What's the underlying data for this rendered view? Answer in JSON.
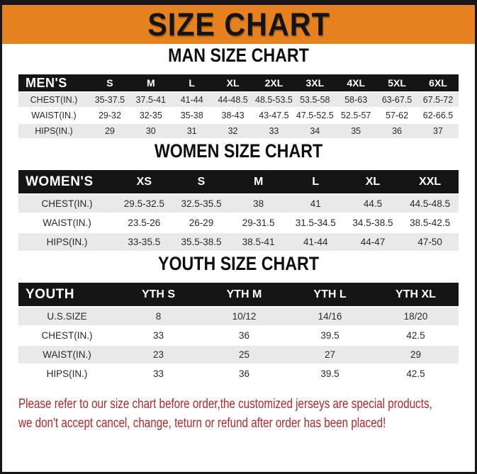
{
  "colors": {
    "banner_bg": "#e5811e",
    "table_header_bg": "#151515",
    "row_stripe": "#e9e9e9",
    "footer_text": "#b5282a"
  },
  "banner": {
    "title": "SIZE CHART"
  },
  "sections": [
    {
      "heading": "MAN SIZE CHART",
      "table": {
        "header": [
          "MEN'S",
          "S",
          "M",
          "L",
          "XL",
          "2XL",
          "3XL",
          "4XL",
          "5XL",
          "6XL"
        ],
        "rows": [
          [
            "CHEST(IN.)",
            "35-37.5",
            "37.5-41",
            "41-44",
            "44-48.5",
            "48.5-53.5",
            "53.5-58",
            "58-63",
            "63-67.5",
            "67.5-72"
          ],
          [
            "WAIST(IN.)",
            "29-32",
            "32-35",
            "35-38",
            "38-43",
            "43-47.5",
            "47.5-52.5",
            "52.5-57",
            "57-62",
            "62-66.5"
          ],
          [
            "HIPS(IN.)",
            "29",
            "30",
            "31",
            "32",
            "33",
            "34",
            "35",
            "36",
            "37"
          ]
        ]
      }
    },
    {
      "heading": "WOMEN SIZE CHART",
      "table": {
        "header": [
          "WOMEN'S",
          "XS",
          "S",
          "M",
          "L",
          "XL",
          "XXL"
        ],
        "rows": [
          [
            "CHEST(IN.)",
            "29.5-32.5",
            "32.5-35.5",
            "38",
            "41",
            "44.5",
            "44.5-48.5"
          ],
          [
            "WAIST(IN.)",
            "23.5-26",
            "26-29",
            "29-31.5",
            "31.5-34.5",
            "34.5-38.5",
            "38.5-42.5"
          ],
          [
            "HIPS(IN.)",
            "33-35.5",
            "35.5-38.5",
            "38.5-41",
            "41-44",
            "44-47",
            "47-50"
          ]
        ]
      }
    },
    {
      "heading": "YOUTH SIZE CHART",
      "table": {
        "header": [
          "YOUTH",
          "YTH S",
          "YTH M",
          "YTH L",
          "YTH XL"
        ],
        "rows": [
          [
            "U.S.SIZE",
            "8",
            "10/12",
            "14/16",
            "18/20"
          ],
          [
            "CHEST(IN.)",
            "33",
            "36",
            "39.5",
            "42.5"
          ],
          [
            "WAIST(IN.)",
            "23",
            "25",
            "27",
            "29"
          ],
          [
            "HIPS(IN.)",
            "33",
            "36",
            "39.5",
            "42.5"
          ]
        ]
      }
    }
  ],
  "footer": {
    "lines": [
      "Please refer to our size chart before order,the customized jerseys are special products,",
      "we don't accept cancel, change, teturn or refund after order has been placed!"
    ]
  }
}
